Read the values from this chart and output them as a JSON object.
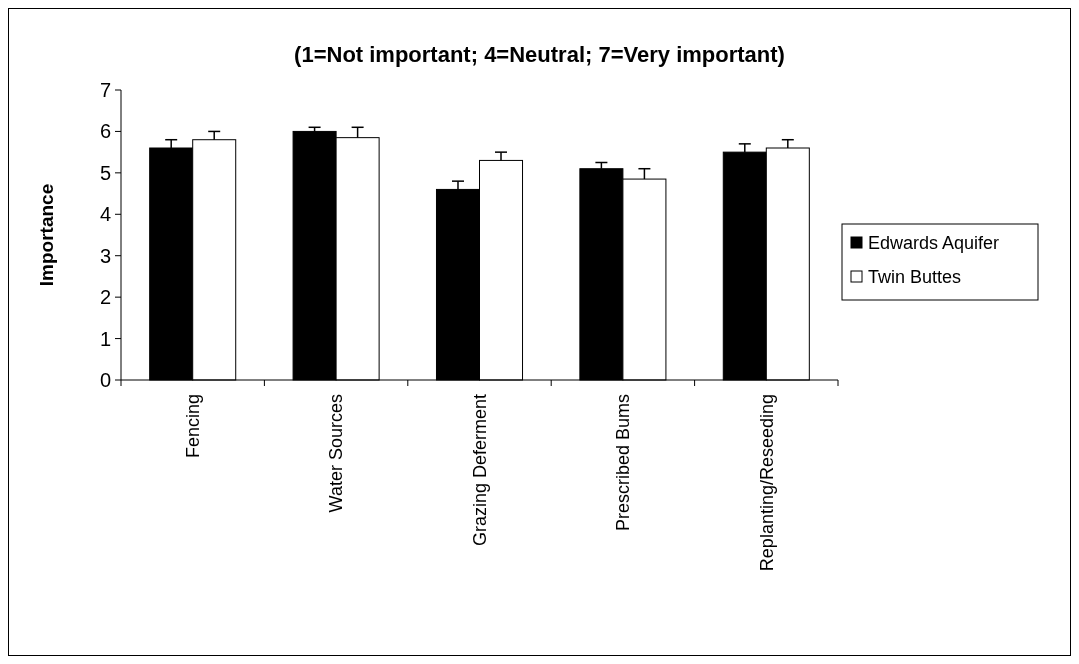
{
  "chart_data": {
    "type": "bar",
    "title": "(1=Not important; 4=Neutral; 7=Very important)",
    "ylabel": "Importance",
    "categories": [
      "Fencing",
      "Water Sources",
      "Grazing Deferment",
      "Prescribed Bums",
      "Replanting/Reseeding"
    ],
    "series": [
      {
        "name": "Edwards Aquifer",
        "color": "#000000",
        "values": [
          5.6,
          6.0,
          4.6,
          5.1,
          5.5
        ],
        "errors": [
          [
            5.6,
            5.8
          ],
          [
            6.0,
            6.1
          ],
          [
            4.6,
            4.8
          ],
          [
            5.1,
            5.25
          ],
          [
            5.5,
            5.7
          ]
        ]
      },
      {
        "name": "Twin Buttes",
        "color": "#ffffff",
        "values": [
          5.8,
          5.85,
          5.3,
          4.85,
          5.6
        ],
        "errors": [
          [
            5.8,
            6.0
          ],
          [
            5.85,
            6.1
          ],
          [
            5.3,
            5.5
          ],
          [
            4.85,
            5.1
          ],
          [
            5.6,
            5.8
          ]
        ]
      }
    ],
    "ylim": [
      0,
      7
    ],
    "yticks": [
      0,
      1,
      2,
      3,
      4,
      5,
      6,
      7
    ],
    "legend": "right",
    "grid": false
  }
}
